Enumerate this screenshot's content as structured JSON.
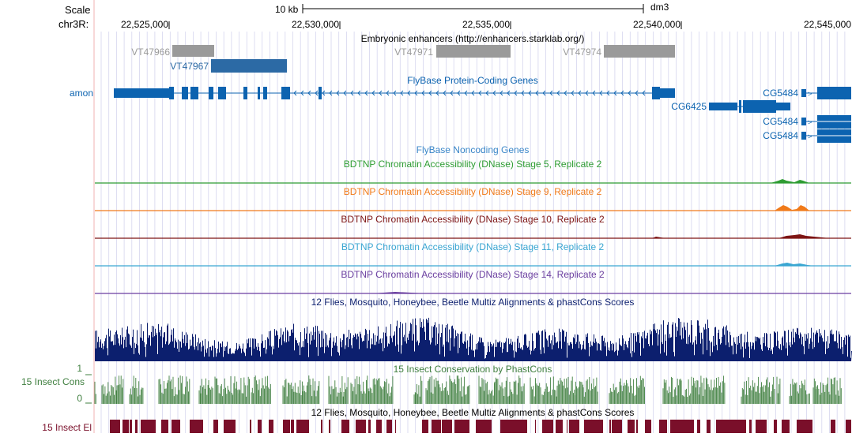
{
  "scale": {
    "label": "Scale",
    "bar_label": "10 kb",
    "assembly": "dm3"
  },
  "chrom": {
    "label": "chr3R:",
    "ticks": [
      "22,525,000",
      "22,530,000",
      "22,535,000",
      "22,540,000",
      "22,545,000"
    ]
  },
  "tracks": {
    "enhancers": {
      "title": "Embryonic enhancers (http://enhancers.starklab.org/)",
      "items": [
        "VT47966",
        "VT47967",
        "VT47971",
        "VT47974"
      ]
    },
    "flybase_coding": {
      "title": "FlyBase Protein-Coding Genes",
      "side_label": "amon",
      "genes": [
        "CG5484",
        "CG6425",
        "CG5484",
        "CG5484"
      ]
    },
    "flybase_noncoding": {
      "title": "FlyBase Noncoding Genes"
    },
    "dnase": [
      {
        "title": "BDTNP Chromatin Accessibility (DNase) Stage 5, Replicate 2",
        "color": "#2e9c33"
      },
      {
        "title": "BDTNP Chromatin Accessibility (DNase) Stage 9, Replicate 2",
        "color": "#f07a1a"
      },
      {
        "title": "BDTNP Chromatin Accessibility (DNase) Stage 10, Replicate 2",
        "color": "#7d1414"
      },
      {
        "title": "BDTNP Chromatin Accessibility (DNase) Stage 11, Replicate 2",
        "color": "#3aa6d2"
      },
      {
        "title": "BDTNP Chromatin Accessibility (DNase) Stage 14, Replicate 2",
        "color": "#6b3fa0"
      }
    ],
    "multiz": {
      "title": "12 Flies, Mosquito, Honeybee, Beetle Multiz Alignments & phastCons Scores",
      "color": "#0c1f6e"
    },
    "phastcons": {
      "title": "15 Insect Conservation by PhastCons",
      "side_label": "15 Insect Cons",
      "y_max": "1",
      "y_min": "0",
      "color": "#3f7f3f"
    },
    "elements": {
      "title": "12 Flies, Mosquito, Honeybee, Beetle Multiz Alignments & phastCons Scores",
      "side_label": "15 Insect El",
      "color": "#7a0f2a"
    }
  },
  "colors": {
    "enhancer_gray": "#9a9a9a",
    "enhancer_blue": "#2c6aa5",
    "gene_blue": "#0c63b0",
    "grid": "#d6d6ee",
    "guide_red": "#f0b0b0"
  }
}
